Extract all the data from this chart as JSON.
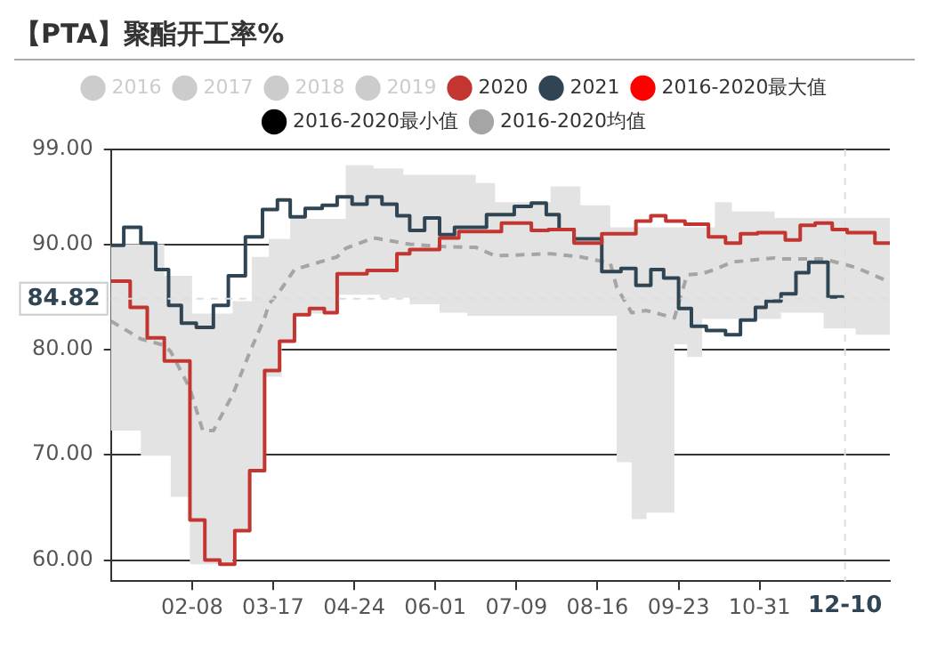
{
  "chart_data": {
    "type": "step",
    "title": "【PTA】聚酯开工率%",
    "xlim": [
      "--01-01",
      "--12-31"
    ],
    "xticks": [
      {
        "value": "--02-08",
        "label": "02-08"
      },
      {
        "value": "--03-17",
        "label": "03-17"
      },
      {
        "value": "--04-24",
        "label": "04-24"
      },
      {
        "value": "--06-01",
        "label": "06-01"
      },
      {
        "value": "--07-09",
        "label": "07-09"
      },
      {
        "value": "--08-16",
        "label": "08-16"
      },
      {
        "value": "--09-23",
        "label": "09-23"
      },
      {
        "value": "--10-31",
        "label": "10-31"
      }
    ],
    "ylim": [
      58,
      99
    ],
    "yticks": [
      {
        "value": 60,
        "label": "60.00"
      },
      {
        "value": 70,
        "label": "70.00"
      },
      {
        "value": 80,
        "label": "80.00"
      },
      {
        "value": 90,
        "label": "90.00"
      },
      {
        "value": 99,
        "label": "99.00"
      }
    ],
    "grid": "y",
    "legend": "top",
    "marker": "none",
    "ref_lines": [
      {
        "axis": "y",
        "value": 84.82,
        "label": "84.82",
        "color": "#dddddd",
        "line_style": "dashed"
      },
      {
        "axis": "x",
        "value": "--12-10",
        "label": "12-10",
        "color": "#dddddd",
        "line_style": "dashed"
      }
    ],
    "series": [
      {
        "name": "2016",
        "color": "#cccccc"
      },
      {
        "name": "2017",
        "color": "#cccccc"
      },
      {
        "name": "2018",
        "color": "#cccccc"
      },
      {
        "name": "2019",
        "color": "#cccccc"
      },
      {
        "name": "2020",
        "color": "#c23531",
        "x": [
          "--01-01",
          "--01-10",
          "--01-18",
          "--01-26",
          "--02-07",
          "--02-14",
          "--02-21",
          "--02-28",
          "--03-06",
          "--03-13",
          "--03-20",
          "--03-27",
          "--04-03",
          "--04-10",
          "--04-16",
          "--04-30",
          "--05-14",
          "--05-20",
          "--06-03",
          "--06-12",
          "--07-02",
          "--07-16",
          "--07-24",
          "--08-05",
          "--08-18",
          "--09-03",
          "--09-10",
          "--09-17",
          "--09-26",
          "--10-07",
          "--10-15",
          "--10-22",
          "--10-30",
          "--11-12",
          "--11-19",
          "--11-26",
          "--12-04",
          "--12-11",
          "--12-24",
          "--12-31"
        ],
        "values": [
          86.5,
          84.0,
          81.1,
          78.9,
          63.8,
          60.0,
          59.6,
          62.8,
          68.5,
          78.0,
          80.8,
          83.3,
          83.9,
          83.5,
          87.2,
          87.5,
          89.1,
          89.5,
          90.6,
          91.2,
          92.0,
          91.3,
          91.4,
          90.1,
          91.0,
          92.2,
          92.7,
          92.2,
          91.9,
          90.7,
          90.1,
          91.0,
          91.1,
          90.4,
          91.8,
          92.0,
          91.4,
          91.1,
          90.1,
          90.1
        ]
      },
      {
        "name": "2021",
        "color": "#2f4554",
        "x": [
          "--01-01",
          "--01-07",
          "--01-15",
          "--01-22",
          "--01-28",
          "--02-03",
          "--02-10",
          "--02-18",
          "--02-25",
          "--03-04",
          "--03-12",
          "--03-19",
          "--03-25",
          "--04-01",
          "--04-09",
          "--04-16",
          "--04-23",
          "--04-30",
          "--05-07",
          "--05-14",
          "--05-20",
          "--05-27",
          "--06-03",
          "--06-10",
          "--06-25",
          "--07-08",
          "--07-16",
          "--07-23",
          "--07-29",
          "--08-05",
          "--08-18",
          "--08-27",
          "--09-03",
          "--09-10",
          "--09-16",
          "--09-23",
          "--09-29",
          "--10-06",
          "--10-15",
          "--10-22",
          "--10-29",
          "--11-03",
          "--11-10",
          "--11-17",
          "--11-23",
          "--12-02",
          "--12-09"
        ],
        "values": [
          89.9,
          91.6,
          90.1,
          87.6,
          84.2,
          82.5,
          82.1,
          84.2,
          87.0,
          90.7,
          93.3,
          94.2,
          92.6,
          93.4,
          93.7,
          94.5,
          93.8,
          94.5,
          93.8,
          92.7,
          91.3,
          92.5,
          90.9,
          91.6,
          92.8,
          93.6,
          93.9,
          92.8,
          91.4,
          90.5,
          87.4,
          87.7,
          86.1,
          87.6,
          86.8,
          83.9,
          82.2,
          81.8,
          81.4,
          82.8,
          84.0,
          84.6,
          85.3,
          87.3,
          88.3,
          85.0,
          84.8
        ]
      },
      {
        "name": "2016-2020最大值",
        "color": "#ff0000"
      },
      {
        "name": "2016-2020最小值",
        "color": "#000000"
      },
      {
        "name": "2016-2020均值",
        "type": "line",
        "line_style": "dashed",
        "color": "#a5a5a5",
        "x": [
          "--01-01",
          "--01-15",
          "--01-26",
          "--01-29",
          "--02-07",
          "--02-08",
          "--02-13",
          "--02-18",
          "--02-27",
          "--03-07",
          "--03-13",
          "--03-15",
          "--03-21",
          "--03-25",
          "--03-27",
          "--04-16",
          "--04-20",
          "--05-03",
          "--05-06",
          "--05-17",
          "--05-20",
          "--06-03",
          "--06-16",
          "--06-20",
          "--06-29",
          "--07-25",
          "--08-08",
          "--08-22",
          "--08-25",
          "--09-01",
          "--09-08",
          "--09-21",
          "--09-27",
          "--10-04",
          "--10-10",
          "--10-18",
          "--11-07",
          "--11-10",
          "--11-30",
          "--12-15",
          "--12-31"
        ],
        "values": [
          82.7,
          81.0,
          80.4,
          79.8,
          76.3,
          75.6,
          72.3,
          72.3,
          75.7,
          80.2,
          83.0,
          84.3,
          85.8,
          87.0,
          87.6,
          88.8,
          89.6,
          90.6,
          90.5,
          90.1,
          90.0,
          89.8,
          89.7,
          89.7,
          88.9,
          89.1,
          88.8,
          88.2,
          85.9,
          83.5,
          83.7,
          83.0,
          87.1,
          87.2,
          87.6,
          88.3,
          88.7,
          88.6,
          88.6,
          87.8,
          86.4
        ],
        "upper": [
          90.0,
          90.0,
          87.0,
          87.0,
          87.0,
          83.4,
          83.4,
          83.4,
          84.6,
          88.8,
          88.8,
          90.5,
          90.5,
          92.4,
          92.4,
          92.4,
          97.5,
          97.2,
          97.2,
          96.6,
          96.6,
          96.6,
          96.6,
          95.8,
          94.0,
          95.5,
          93.7,
          91.6,
          91.6,
          91.6,
          91.6,
          91.6,
          91.6,
          91.6,
          94.0,
          93.1,
          92.5,
          92.5,
          92.5,
          92.5,
          92.5
        ],
        "lower": [
          72.3,
          69.9,
          69.9,
          66.0,
          59.6,
          59.6,
          59.6,
          59.6,
          62.7,
          68.5,
          77.4,
          77.4,
          80.7,
          80.7,
          83.4,
          85.2,
          85.2,
          85.2,
          84.9,
          84.9,
          84.3,
          83.5,
          83.2,
          83.2,
          83.2,
          83.2,
          83.2,
          83.2,
          69.3,
          63.9,
          64.5,
          80.5,
          79.3,
          82.9,
          82.9,
          82.9,
          82.9,
          83.5,
          82.0,
          81.4,
          81.4
        ]
      }
    ]
  }
}
